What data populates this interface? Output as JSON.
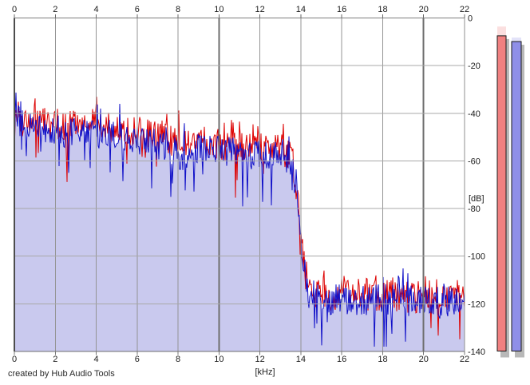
{
  "credit": "created by Hub Audio Tools",
  "chart_data": {
    "type": "line",
    "title": "",
    "xlabel": "[kHz]",
    "ylabel": "[dB]",
    "xlim": [
      0,
      22
    ],
    "ylim": [
      -140,
      0
    ],
    "grid": true,
    "x_ticks": [
      0,
      2,
      4,
      6,
      8,
      10,
      12,
      14,
      16,
      18,
      20,
      22
    ],
    "y_ticks": [
      0,
      -20,
      -40,
      -60,
      -80,
      -100,
      -120,
      -140
    ],
    "bold_x_gridlines": [
      10,
      20
    ],
    "colors": {
      "red_trace": "#dd0000",
      "blue_trace": "#1010c8",
      "blue_fill": "#c9c9ee",
      "grid_vertical": "#949494",
      "grid_vertical_bold": "#6e6e6e",
      "grid_horizontal": "#a8a8a8",
      "frame": "#5a5a5a",
      "meter_shadow": "#b8b8b8",
      "meter_border": "#1a1a1a"
    },
    "series": [
      {
        "name": "red-trace",
        "color": "#dd0000",
        "anchors": [
          [
            0,
            -60
          ],
          [
            0.05,
            -36
          ],
          [
            0.12,
            -40
          ],
          [
            0.35,
            -43
          ],
          [
            0.8,
            -42
          ],
          [
            1.5,
            -44
          ],
          [
            2.5,
            -45
          ],
          [
            3.5,
            -44
          ],
          [
            4.5,
            -46
          ],
          [
            5.5,
            -47
          ],
          [
            6.5,
            -48
          ],
          [
            7.5,
            -51
          ],
          [
            8.2,
            -54
          ],
          [
            9,
            -51
          ],
          [
            10,
            -53
          ],
          [
            11,
            -55
          ],
          [
            12,
            -55
          ],
          [
            13,
            -55
          ],
          [
            13.55,
            -58
          ],
          [
            13.75,
            -68
          ],
          [
            13.95,
            -85
          ],
          [
            14.15,
            -103
          ],
          [
            14.35,
            -113
          ],
          [
            15,
            -116
          ],
          [
            17,
            -116
          ],
          [
            19,
            -117
          ],
          [
            21,
            -117
          ],
          [
            22,
            -116
          ]
        ]
      },
      {
        "name": "blue-trace",
        "color": "#1010c8",
        "fill": "#c9c9ee",
        "anchors": [
          [
            0,
            -62
          ],
          [
            0.05,
            -27
          ],
          [
            0.12,
            -42
          ],
          [
            0.35,
            -45
          ],
          [
            0.8,
            -44
          ],
          [
            1.5,
            -46
          ],
          [
            2.5,
            -48
          ],
          [
            3.5,
            -47
          ],
          [
            4.5,
            -49
          ],
          [
            5.5,
            -50
          ],
          [
            6.5,
            -52
          ],
          [
            7.5,
            -55
          ],
          [
            8.2,
            -58
          ],
          [
            9,
            -54
          ],
          [
            10,
            -56
          ],
          [
            11,
            -57
          ],
          [
            12,
            -58
          ],
          [
            13,
            -57
          ],
          [
            13.55,
            -60
          ],
          [
            13.75,
            -70
          ],
          [
            13.95,
            -88
          ],
          [
            14.15,
            -106
          ],
          [
            14.35,
            -116
          ],
          [
            15,
            -118
          ],
          [
            17,
            -118
          ],
          [
            19,
            -119
          ],
          [
            21,
            -119
          ],
          [
            22,
            -119
          ]
        ]
      }
    ],
    "noise": {
      "seeds": [
        20240607,
        987654321
      ],
      "amp_anchors": [
        [
          0,
          6.5
        ],
        [
          13.5,
          6.5
        ],
        [
          14.3,
          7
        ],
        [
          22,
          7
        ]
      ],
      "dip_probability": 0.05,
      "dip_extra_range": [
        8,
        20
      ],
      "spike_probability": 0.06,
      "spike_extra_range": [
        4,
        9
      ],
      "low_freq_peak_clamp": [
        -30,
        -24
      ],
      "peak_clamp": -33,
      "floor_clamp": -138
    },
    "level_meters": {
      "bars": [
        {
          "name": "left",
          "color": "#f08080",
          "peak_db": -7.5,
          "hold_db": -3.6
        },
        {
          "name": "right",
          "color": "#8f8fe8",
          "peak_db": -9.9,
          "hold_db": -8.2
        }
      ],
      "floor_db": -140
    }
  }
}
